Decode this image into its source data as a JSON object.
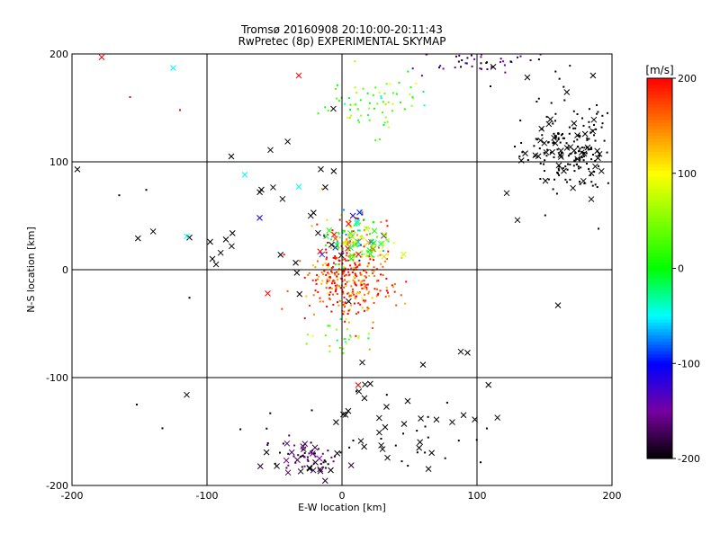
{
  "chart_data": {
    "type": "scatter",
    "title": "Tromsø 20160908 20:10:00-20:11:43",
    "subtitle": "RwPretec (8p) EXPERIMENTAL SKYMAP",
    "xlabel": "E-W location [km]",
    "ylabel": "N-S location [km]",
    "xlim": [
      -200,
      200
    ],
    "ylim": [
      -200,
      200
    ],
    "xticks": [
      -200,
      -100,
      0,
      100,
      200
    ],
    "yticks": [
      -200,
      -100,
      0,
      100,
      200
    ],
    "grid": true,
    "colorbar": {
      "label": "[m/s]",
      "range": [
        -200,
        200
      ],
      "ticks": [
        -200,
        -100,
        0,
        100,
        200
      ],
      "colormap": "black-purple-blue-cyan-green-yellow-red"
    },
    "point_clusters": [
      {
        "name": "central",
        "center": [
          5,
          -10
        ],
        "spread": [
          16,
          18
        ],
        "count": 320,
        "marker": "dot",
        "v_mean": 175,
        "v_spread": 40
      },
      {
        "name": "central-upper",
        "center": [
          12,
          28
        ],
        "spread": [
          14,
          14
        ],
        "count": 130,
        "marker": "dot",
        "v_mean": 60,
        "v_spread": 90
      },
      {
        "name": "north-arc",
        "center": [
          25,
          155
        ],
        "spread": [
          20,
          15
        ],
        "count": 70,
        "marker": "dot",
        "v_mean": 30,
        "v_spread": 45
      },
      {
        "name": "top-edge",
        "center": [
          100,
          192
        ],
        "spread": [
          28,
          6
        ],
        "count": 45,
        "marker": "dot",
        "v_mean": -165,
        "v_spread": 30
      },
      {
        "name": "north-east",
        "center": [
          170,
          115
        ],
        "spread": [
          16,
          22
        ],
        "count": 170,
        "marker": "dot",
        "v_mean": -200,
        "v_spread": 0
      },
      {
        "name": "south-west",
        "center": [
          -25,
          -175
        ],
        "spread": [
          12,
          8
        ],
        "count": 45,
        "marker": "dot",
        "v_mean": -180,
        "v_spread": 20
      },
      {
        "name": "south-scatter",
        "center": [
          40,
          -150
        ],
        "spread": [
          45,
          25
        ],
        "count": 30,
        "marker": "dot",
        "v_mean": -200,
        "v_spread": 0
      },
      {
        "name": "lower-cyan",
        "center": [
          0,
          -62
        ],
        "spread": [
          10,
          8
        ],
        "count": 25,
        "marker": "dot",
        "v_mean": 50,
        "v_spread": 40
      },
      {
        "name": "center-x",
        "center": [
          10,
          25
        ],
        "spread": [
          15,
          10
        ],
        "count": 45,
        "marker": "x",
        "v_mean": 20,
        "v_spread": 110
      },
      {
        "name": "north-east-x",
        "center": [
          170,
          115
        ],
        "spread": [
          18,
          25
        ],
        "count": 45,
        "marker": "x",
        "v_mean": -200,
        "v_spread": 0
      },
      {
        "name": "south-west-x",
        "center": [
          -30,
          -175
        ],
        "spread": [
          15,
          10
        ],
        "count": 25,
        "marker": "x",
        "v_mean": -185,
        "v_spread": 15
      },
      {
        "name": "south-x",
        "center": [
          50,
          -150
        ],
        "spread": [
          40,
          25
        ],
        "count": 30,
        "marker": "x",
        "v_mean": -200,
        "v_spread": 0
      },
      {
        "name": "scattered-x",
        "center": [
          -50,
          40
        ],
        "spread": [
          40,
          40
        ],
        "count": 25,
        "marker": "x",
        "v_mean": -200,
        "v_spread": 0
      }
    ],
    "isolated_points": [
      {
        "x": -196,
        "y": 93,
        "v": -200,
        "marker": "x"
      },
      {
        "x": -178,
        "y": 197,
        "v": 200,
        "marker": "x"
      },
      {
        "x": -125,
        "y": 187,
        "v": -50,
        "marker": "x"
      },
      {
        "x": -115,
        "y": 31,
        "v": -50,
        "marker": "x"
      },
      {
        "x": -115,
        "y": -116,
        "v": -200,
        "marker": "x"
      },
      {
        "x": -72,
        "y": 88,
        "v": -50,
        "marker": "x"
      },
      {
        "x": -61,
        "y": 48,
        "v": -100,
        "marker": "x"
      },
      {
        "x": -32,
        "y": 77,
        "v": -50,
        "marker": "x"
      },
      {
        "x": -32,
        "y": 180,
        "v": 200,
        "marker": "x"
      },
      {
        "x": -53,
        "y": 111,
        "v": -200,
        "marker": "x"
      },
      {
        "x": -82,
        "y": 105,
        "v": -200,
        "marker": "x"
      },
      {
        "x": 112,
        "y": 188,
        "v": -200,
        "marker": "x"
      },
      {
        "x": 160,
        "y": -33,
        "v": -200,
        "marker": "x"
      },
      {
        "x": 122,
        "y": 71,
        "v": -200,
        "marker": "x"
      },
      {
        "x": 130,
        "y": 46,
        "v": -200,
        "marker": "x"
      },
      {
        "x": 93,
        "y": -77,
        "v": -200,
        "marker": "x"
      },
      {
        "x": 88,
        "y": -76,
        "v": -200,
        "marker": "x"
      },
      {
        "x": 60,
        "y": -88,
        "v": -200,
        "marker": "x"
      },
      {
        "x": 15,
        "y": -86,
        "v": -200,
        "marker": "x"
      },
      {
        "x": 12,
        "y": -107,
        "v": 200,
        "marker": "x"
      },
      {
        "x": -86,
        "y": 28,
        "v": -200,
        "marker": "x"
      },
      {
        "x": -96,
        "y": 10,
        "v": -200,
        "marker": "x"
      },
      {
        "x": -55,
        "y": -22,
        "v": 200,
        "marker": "x"
      },
      {
        "x": -165,
        "y": 69,
        "v": -200,
        "marker": "dot"
      },
      {
        "x": -157,
        "y": 160,
        "v": 200,
        "marker": "dot"
      },
      {
        "x": -120,
        "y": 148,
        "v": 200,
        "marker": "dot"
      },
      {
        "x": -145,
        "y": 74,
        "v": -200,
        "marker": "dot"
      },
      {
        "x": -113,
        "y": -26,
        "v": -200,
        "marker": "dot"
      },
      {
        "x": -152,
        "y": -125,
        "v": -200,
        "marker": "dot"
      },
      {
        "x": -133,
        "y": -147,
        "v": -200,
        "marker": "dot"
      },
      {
        "x": 110,
        "y": 170,
        "v": -200,
        "marker": "dot"
      },
      {
        "x": 190,
        "y": 38,
        "v": -200,
        "marker": "dot"
      }
    ]
  }
}
